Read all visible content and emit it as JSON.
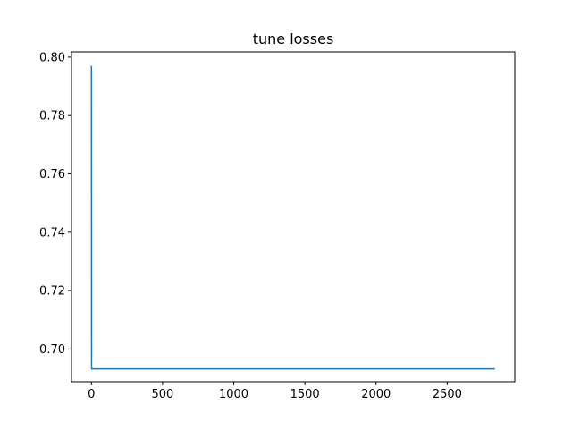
{
  "chart_data": {
    "type": "line",
    "title": "tune losses",
    "xlabel": "",
    "ylabel": "",
    "xlim": [
      -140,
      2975
    ],
    "ylim": [
      0.6888,
      0.8018
    ],
    "xticks": [
      0,
      500,
      1000,
      1500,
      2000,
      2500
    ],
    "yticks": [
      0.7,
      0.72,
      0.74,
      0.76,
      0.78,
      0.8
    ],
    "xtick_labels": [
      "0",
      "500",
      "1000",
      "1500",
      "2000",
      "2500"
    ],
    "ytick_labels": [
      "0.70",
      "0.72",
      "0.74",
      "0.76",
      "0.78",
      "0.80"
    ],
    "grid": false,
    "series": [
      {
        "color": "#1f77b4",
        "x": [
          0,
          1,
          2,
          5,
          100,
          500,
          1000,
          1500,
          2000,
          2500,
          2835
        ],
        "y": [
          0.797,
          0.6932,
          0.6932,
          0.6932,
          0.6932,
          0.6932,
          0.6932,
          0.6932,
          0.6932,
          0.6932,
          0.6932
        ]
      }
    ]
  }
}
